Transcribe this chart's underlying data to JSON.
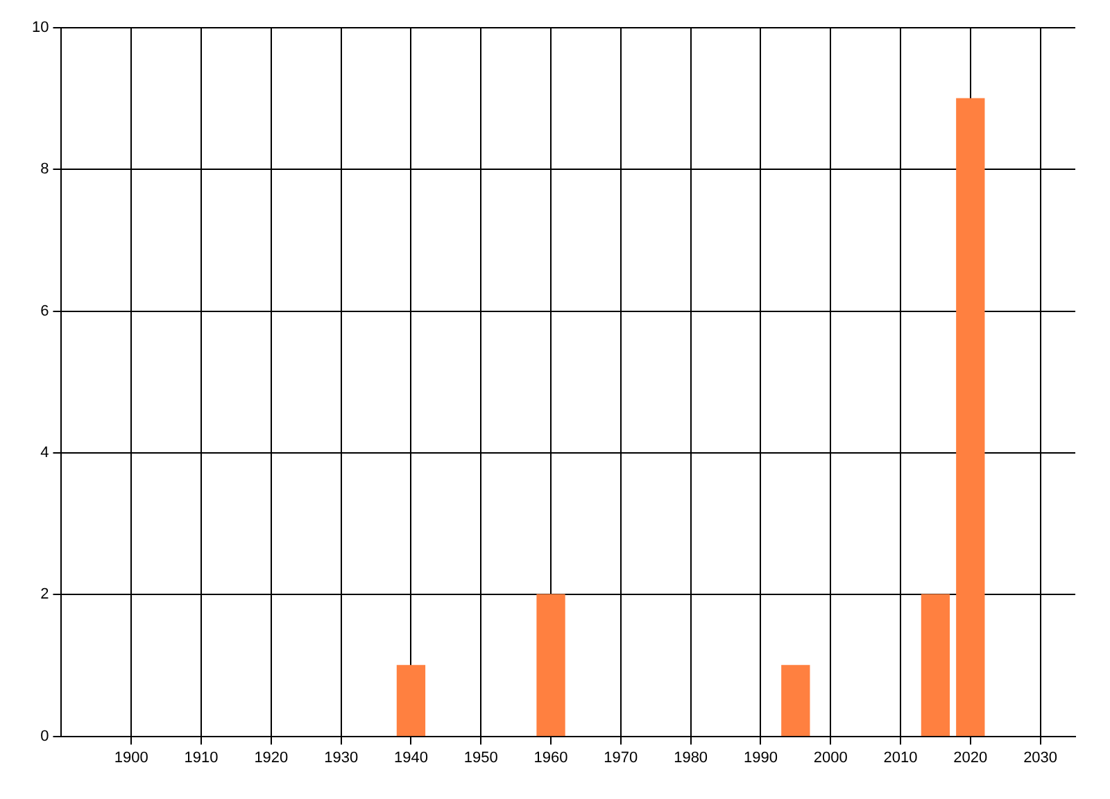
{
  "chart_data": {
    "type": "bar",
    "x": [
      1940,
      1960,
      1995,
      2015,
      2020
    ],
    "values": [
      1,
      2,
      1,
      2,
      9
    ],
    "color": "#ff8040",
    "xlim": [
      1890,
      2035
    ],
    "xticks": [
      1900,
      1910,
      1920,
      1930,
      1940,
      1950,
      1960,
      1970,
      1980,
      1990,
      2000,
      2010,
      2020,
      2030
    ],
    "ylim": [
      0,
      10
    ],
    "yticks": [
      0,
      2,
      4,
      6,
      8,
      10
    ],
    "grid": true,
    "legend": false
  }
}
